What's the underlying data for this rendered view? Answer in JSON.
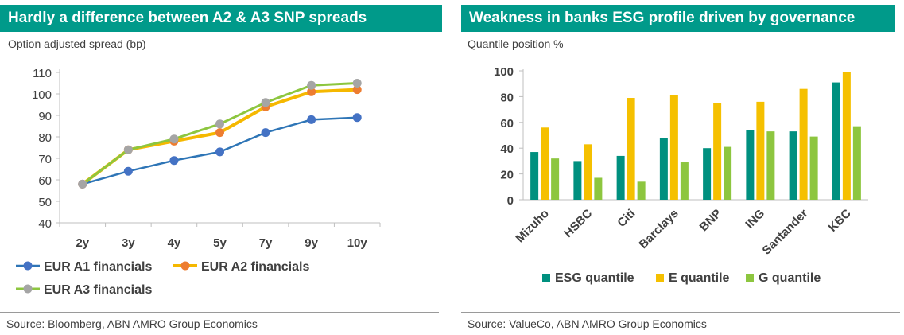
{
  "colors": {
    "header_bg": "#009A8A",
    "header_text": "#FFFFFF",
    "a1": "#2E75B6",
    "a1_marker": "#4472C4",
    "a2": "#F5B800",
    "a2_marker": "#ED7D31",
    "a3": "#8DC63F",
    "a3_marker": "#A5A5A5",
    "esg": "#00907F",
    "e": "#F5C000",
    "g": "#8DC63F"
  },
  "left": {
    "title": "Hardly a difference between A2 & A3 SNP spreads",
    "subtitle": "Option adjusted spread (bp)",
    "source": "Source: Bloomberg, ABN AMRO Group Economics"
  },
  "right": {
    "title": "Weakness in banks ESG profile driven by governance",
    "subtitle": "Quantile position %",
    "source": "Source: ValueCo, ABN AMRO Group Economics"
  },
  "chart_data": [
    {
      "type": "line",
      "title": "Hardly a difference between A2 & A3 SNP spreads",
      "ylabel": "Option adjusted spread (bp)",
      "xlabel": "",
      "categories": [
        "2y",
        "3y",
        "4y",
        "5y",
        "7y",
        "9y",
        "10y"
      ],
      "ylim": [
        40,
        110
      ],
      "yticks": [
        40,
        50,
        60,
        70,
        80,
        90,
        100,
        110
      ],
      "grid": false,
      "legend": "bottom",
      "series": [
        {
          "name": "EUR A1 financials",
          "values": [
            58,
            64,
            69,
            73,
            82,
            88,
            89
          ]
        },
        {
          "name": "EUR A2 financials",
          "values": [
            58,
            74,
            78,
            82,
            94,
            101,
            102
          ]
        },
        {
          "name": "EUR A3 financials",
          "values": [
            58,
            74,
            79,
            86,
            96,
            104,
            105
          ]
        }
      ]
    },
    {
      "type": "bar",
      "title": "Weakness in banks ESG profile driven by governance",
      "ylabel": "Quantile position %",
      "xlabel": "",
      "categories": [
        "Mizuho",
        "HSBC",
        "Citi",
        "Barclays",
        "BNP",
        "ING",
        "Santander",
        "KBC"
      ],
      "ylim": [
        0,
        100
      ],
      "yticks": [
        0,
        20,
        40,
        60,
        80,
        100
      ],
      "grid": false,
      "legend": "bottom",
      "series": [
        {
          "name": "ESG quantile",
          "values": [
            37,
            30,
            34,
            48,
            40,
            54,
            53,
            91
          ]
        },
        {
          "name": "E quantile",
          "values": [
            56,
            43,
            79,
            81,
            75,
            76,
            86,
            99
          ]
        },
        {
          "name": "G quantile",
          "values": [
            32,
            17,
            14,
            29,
            41,
            53,
            49,
            57
          ]
        }
      ]
    }
  ]
}
